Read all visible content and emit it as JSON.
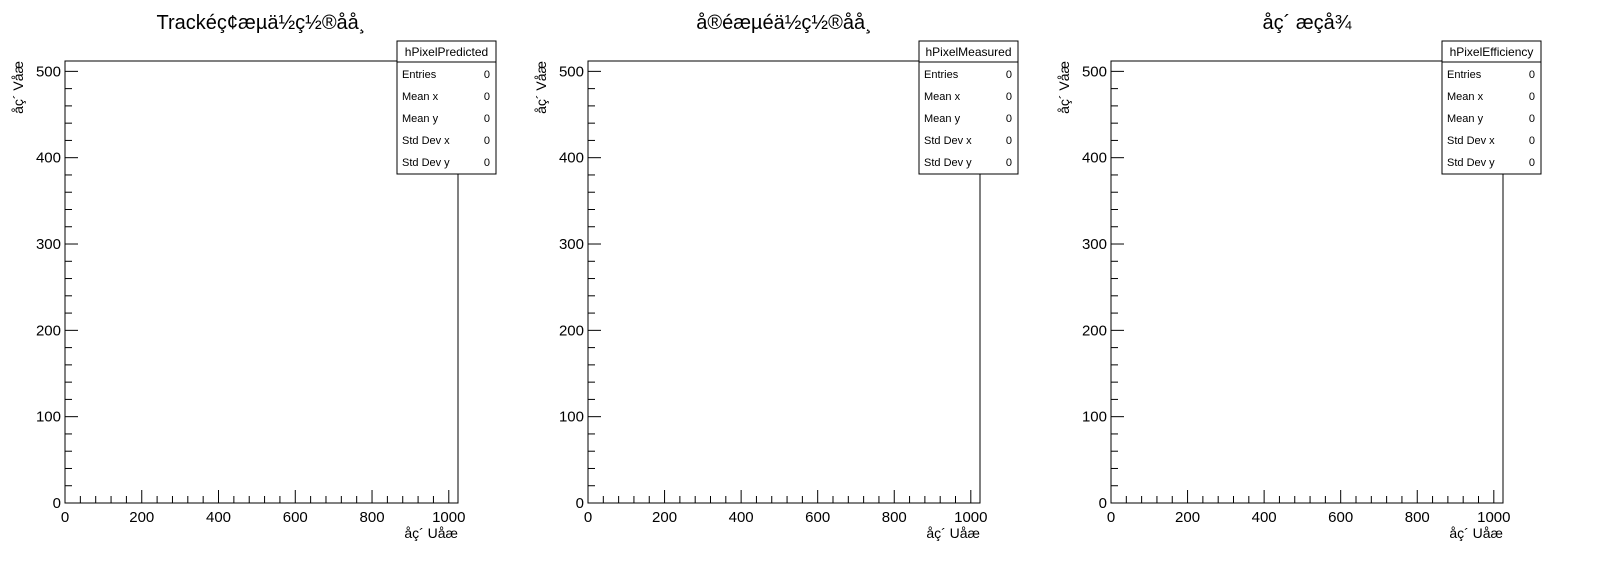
{
  "chart_data": [
    {
      "type": "heatmap",
      "title": "Trackéç¢æµä½ç½®åå¸",
      "xlabel": "åç´ Uåæ",
      "ylabel": "åç´ Våæ",
      "xlim": [
        0,
        1024
      ],
      "ylim": [
        0,
        512
      ],
      "xticks": [
        0,
        200,
        400,
        600,
        800,
        1000
      ],
      "yticks": [
        0,
        100,
        200,
        300,
        400,
        500
      ],
      "values": [],
      "stats": {
        "name": "hPixelPredicted",
        "rows": [
          {
            "label": "Entries",
            "value": "0"
          },
          {
            "label": "Mean x",
            "value": "0"
          },
          {
            "label": "Mean y",
            "value": "0"
          },
          {
            "label": "Std Dev x",
            "value": "0"
          },
          {
            "label": "Std Dev y",
            "value": "0"
          }
        ]
      }
    },
    {
      "type": "heatmap",
      "title": "å®éæµéä½ç½®åå¸",
      "xlabel": "åç´ Uåæ",
      "ylabel": "åç´ Våæ",
      "xlim": [
        0,
        1024
      ],
      "ylim": [
        0,
        512
      ],
      "xticks": [
        0,
        200,
        400,
        600,
        800,
        1000
      ],
      "yticks": [
        0,
        100,
        200,
        300,
        400,
        500
      ],
      "values": [],
      "stats": {
        "name": "hPixelMeasured",
        "rows": [
          {
            "label": "Entries",
            "value": "0"
          },
          {
            "label": "Mean x",
            "value": "0"
          },
          {
            "label": "Mean y",
            "value": "0"
          },
          {
            "label": "Std Dev x",
            "value": "0"
          },
          {
            "label": "Std Dev y",
            "value": "0"
          }
        ]
      }
    },
    {
      "type": "heatmap",
      "title": "åç´ æçå¾",
      "xlabel": "åç´ Uåæ",
      "ylabel": "åç´ Våæ",
      "xlim": [
        0,
        1024
      ],
      "ylim": [
        0,
        512
      ],
      "xticks": [
        0,
        200,
        400,
        600,
        800,
        1000
      ],
      "yticks": [
        0,
        100,
        200,
        300,
        400,
        500
      ],
      "values": [],
      "stats": {
        "name": "hPixelEfficiency",
        "rows": [
          {
            "label": "Entries",
            "value": "0"
          },
          {
            "label": "Mean x",
            "value": "0"
          },
          {
            "label": "Mean y",
            "value": "0"
          },
          {
            "label": "Std Dev x",
            "value": "0"
          },
          {
            "label": "Std Dev y",
            "value": "0"
          }
        ]
      }
    }
  ]
}
